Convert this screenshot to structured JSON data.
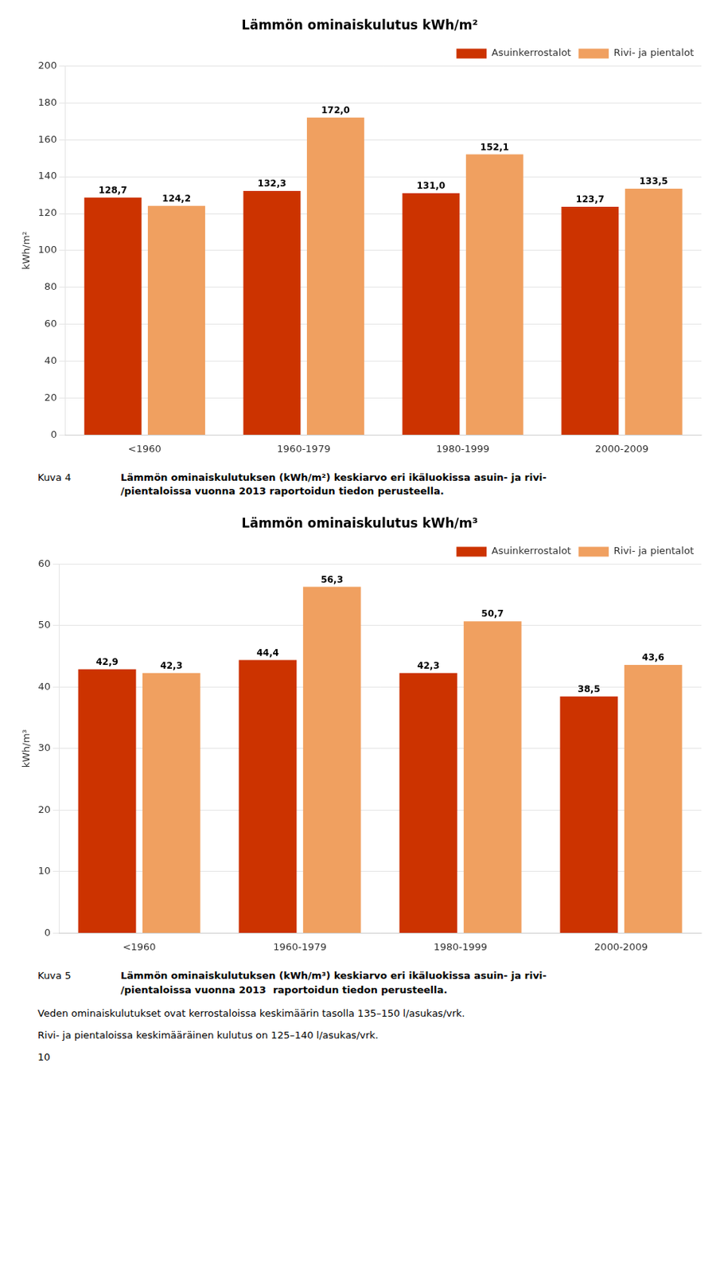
{
  "chart_data": [
    {
      "type": "bar",
      "title": "Lämmön ominaiskulutus kWh/m²",
      "categories": [
        "<1960",
        "1960-1979",
        "1980-1999",
        "2000-2009"
      ],
      "series": [
        {
          "name": "Asuinkerrostalot",
          "color": "#CC3300",
          "values": [
            128.7,
            132.3,
            131.0,
            123.7
          ],
          "value_labels": [
            "128,7",
            "132,3",
            "131,0",
            "123,7"
          ]
        },
        {
          "name": "Rivi- ja pientalot",
          "color": "#F0A060",
          "values": [
            124.2,
            172.0,
            152.1,
            133.5
          ],
          "value_labels": [
            "124,2",
            "172,0",
            "152,1",
            "133,5"
          ]
        }
      ],
      "ylabel": "kWh/m²",
      "ylim": [
        0,
        200
      ],
      "yticks": [
        0,
        20,
        40,
        60,
        80,
        100,
        120,
        140,
        160,
        180,
        200
      ],
      "grid": true,
      "legend": "upper right",
      "data_labels": true,
      "annotations": [
        "Kuva 4",
        "Lämmön ominaiskulutuksen (kWh/m²) keskiarvo eri ikäluokissa asuin- ja rivi-\n/pientaloissa vuonna 2013 raportoidun tiedon perusteella."
      ]
    },
    {
      "type": "bar",
      "title": "Lämmön ominaiskulutus kWh/m³",
      "categories": [
        "<1960",
        "1960-1979",
        "1980-1999",
        "2000-2009"
      ],
      "series": [
        {
          "name": "Asuinkerrostalot",
          "color": "#CC3300",
          "values": [
            42.9,
            44.4,
            42.3,
            38.5
          ],
          "value_labels": [
            "42,9",
            "44,4",
            "42,3",
            "38,5"
          ]
        },
        {
          "name": "Rivi- ja pientalot",
          "color": "#F0A060",
          "values": [
            42.3,
            56.3,
            50.7,
            43.6
          ],
          "value_labels": [
            "42,3",
            "56,3",
            "50,7",
            "43,6"
          ]
        }
      ],
      "ylabel": "kWh/m³",
      "ylim": [
        0,
        60
      ],
      "yticks": [
        0,
        10,
        20,
        30,
        40,
        50,
        60
      ],
      "grid": true,
      "legend": "upper right",
      "data_labels": true,
      "annotations": [
        "Kuva 5",
        "Lämmön ominaiskulutuksen (kWh/m³) keskiarvo eri ikäluokissa asuin- ja rivi-\n/pientaloissa vuonna 2013  raportoidun tiedon perusteella.",
        "Veden ominaiskulutukset ovat kerrostaloissa keskimäärin tasolla 135–150 l/asukas/vrk.",
        "Rivi- ja pientaloissa keskimääräinen kulutus on 125–140 l/asukas/vrk.",
        "10"
      ]
    }
  ]
}
